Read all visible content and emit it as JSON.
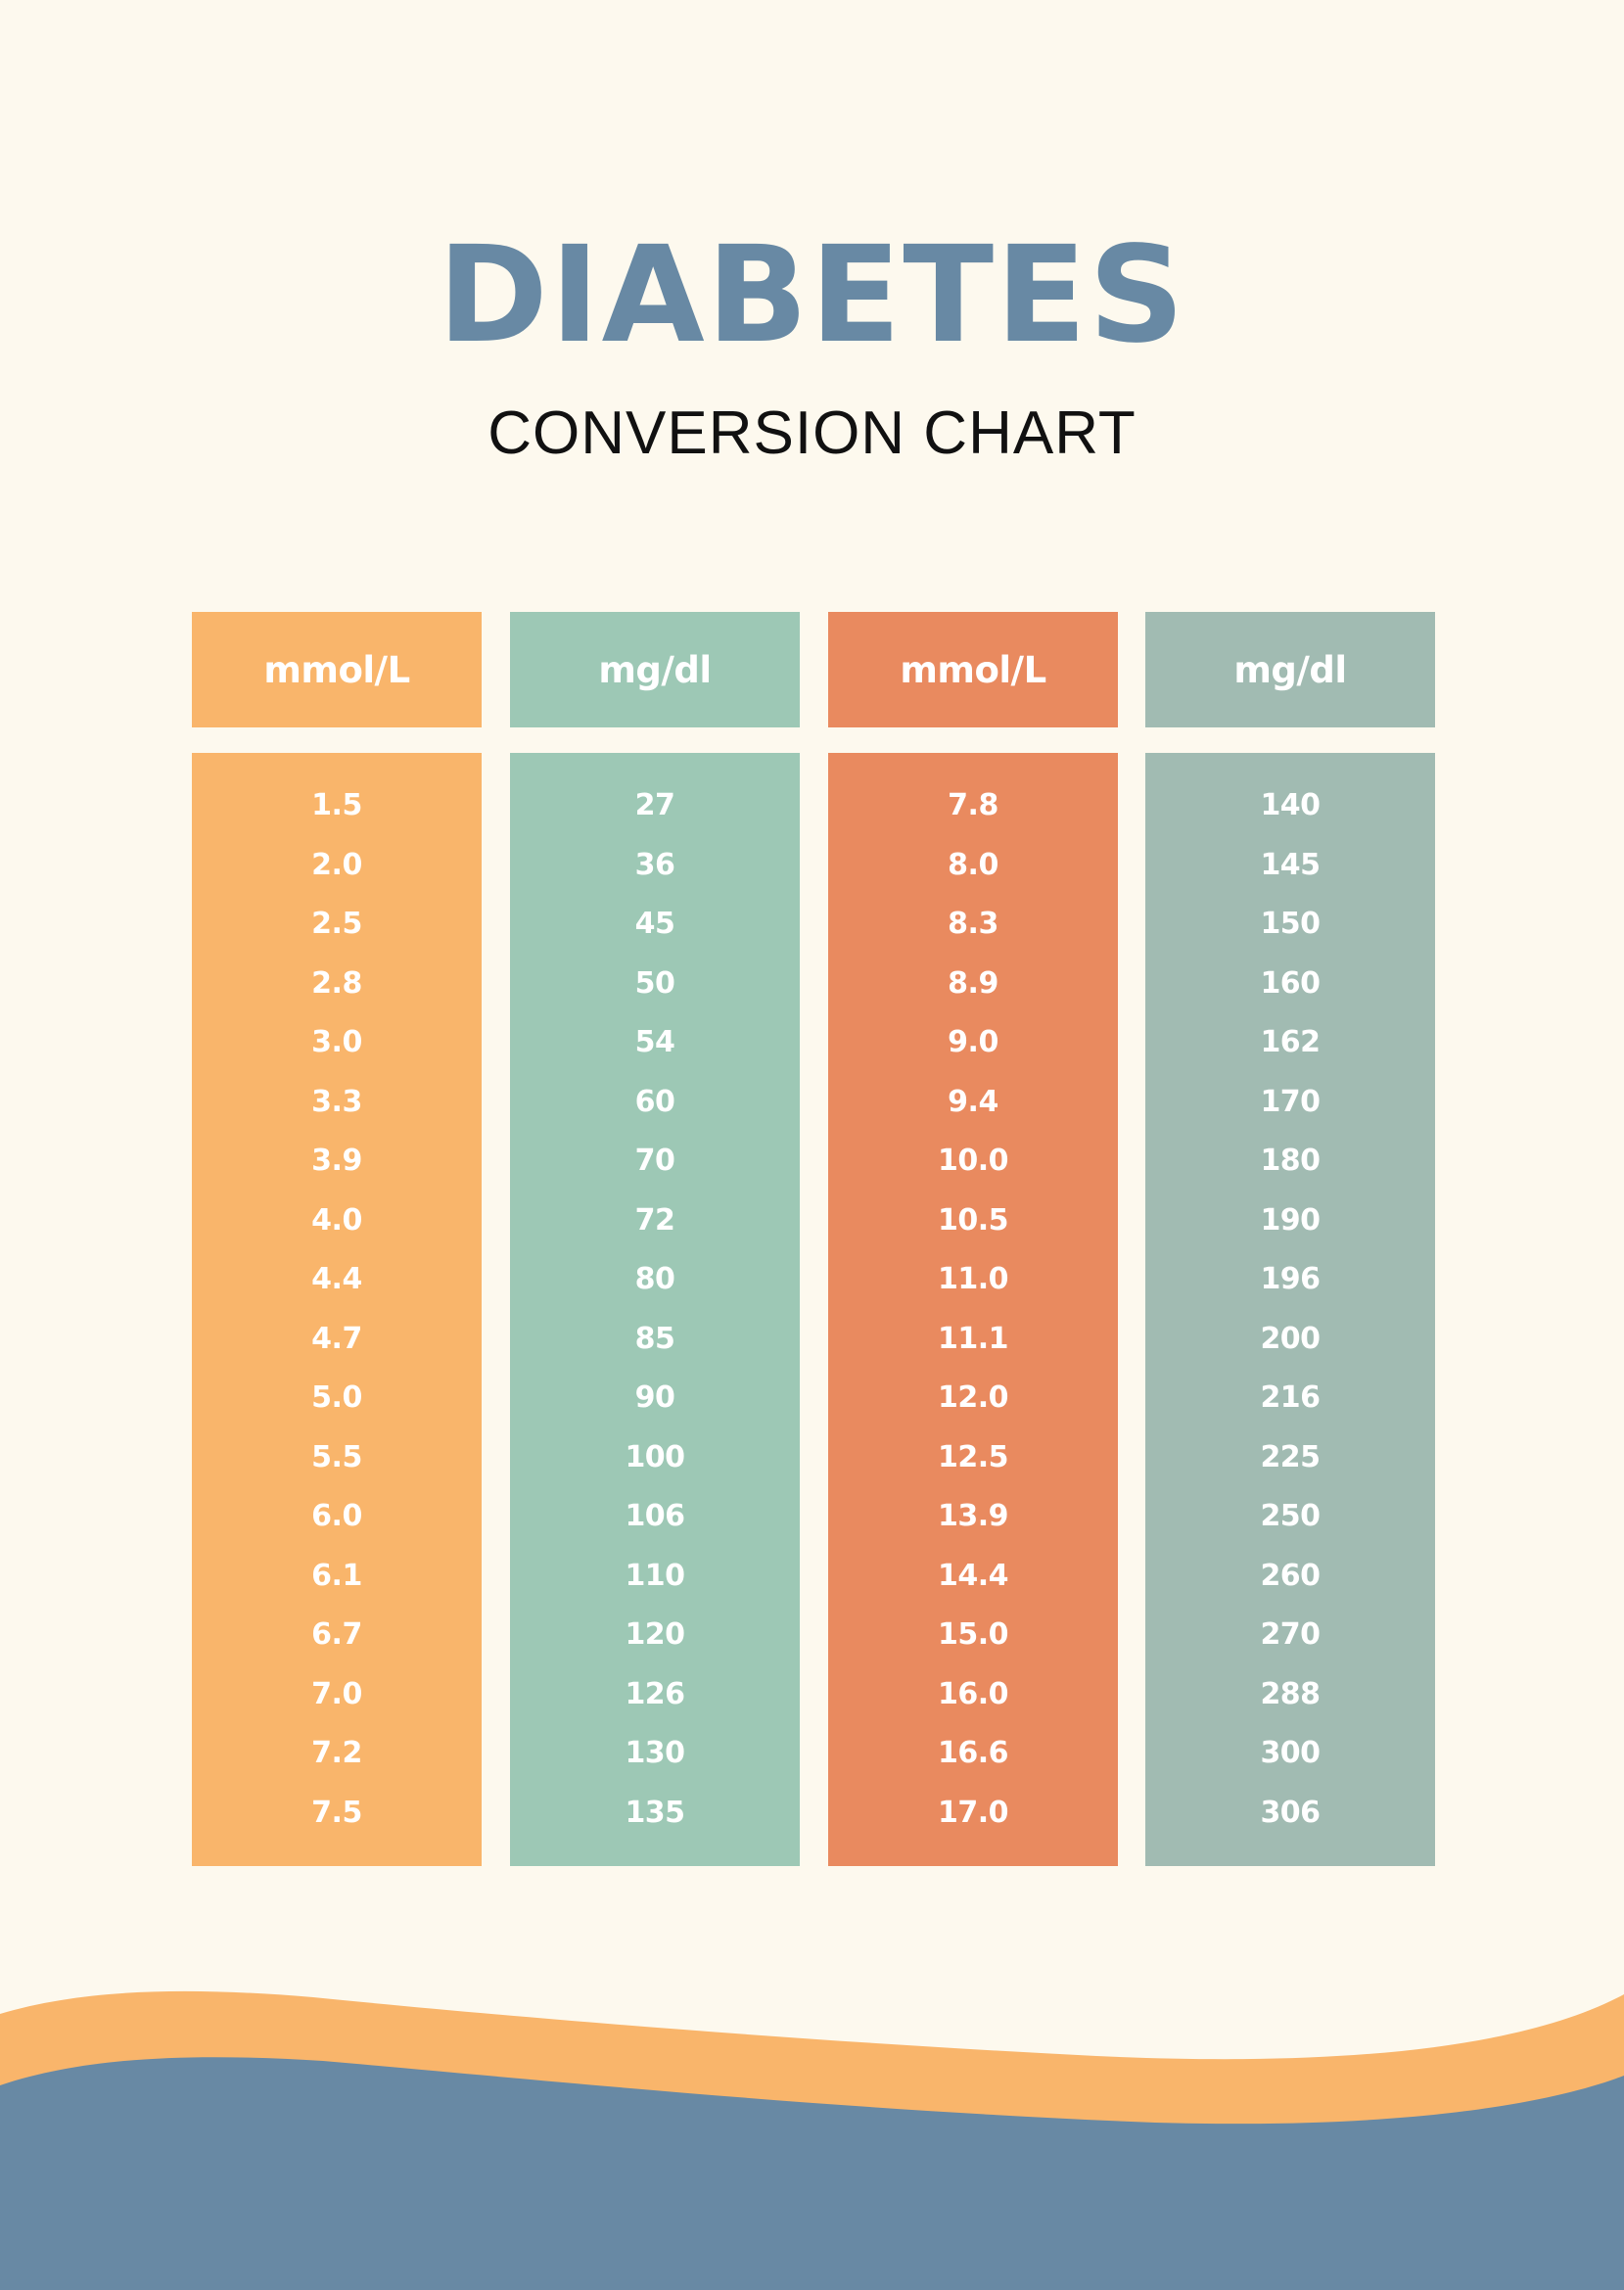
{
  "header": {
    "title": "DIABETES",
    "subtitle": "CONVERSION CHART"
  },
  "colors": {
    "background": "#fdf9ee",
    "title": "#6889a4",
    "subtitle": "#111111",
    "col1": "#f9b56b",
    "col2": "#9dc8b5",
    "col3": "#e98a5f",
    "col4": "#a1bbb2",
    "wave_orange": "#f9b56b",
    "wave_blue": "#6889a4"
  },
  "table": {
    "columns": [
      {
        "header": "mmol/L",
        "values": [
          "1.5",
          "2.0",
          "2.5",
          "2.8",
          "3.0",
          "3.3",
          "3.9",
          "4.0",
          "4.4",
          "4.7",
          "5.0",
          "5.5",
          "6.0",
          "6.1",
          "6.7",
          "7.0",
          "7.2",
          "7.5"
        ]
      },
      {
        "header": "mg/dl",
        "values": [
          "27",
          "36",
          "45",
          "50",
          "54",
          "60",
          "70",
          "72",
          "80",
          "85",
          "90",
          "100",
          "106",
          "110",
          "120",
          "126",
          "130",
          "135"
        ]
      },
      {
        "header": "mmol/L",
        "values": [
          "7.8",
          "8.0",
          "8.3",
          "8.9",
          "9.0",
          "9.4",
          "10.0",
          "10.5",
          "11.0",
          "11.1",
          "12.0",
          "12.5",
          "13.9",
          "14.4",
          "15.0",
          "16.0",
          "16.6",
          "17.0"
        ]
      },
      {
        "header": "mg/dl",
        "values": [
          "140",
          "145",
          "150",
          "160",
          "162",
          "170",
          "180",
          "190",
          "196",
          "200",
          "216",
          "225",
          "250",
          "260",
          "270",
          "288",
          "300",
          "306"
        ]
      }
    ]
  },
  "chart_data": {
    "type": "table",
    "title": "DIABETES CONVERSION CHART",
    "columns": [
      "mmol/L",
      "mg/dl",
      "mmol/L",
      "mg/dl"
    ],
    "rows": [
      [
        "1.5",
        "27",
        "7.8",
        "140"
      ],
      [
        "2.0",
        "36",
        "8.0",
        "145"
      ],
      [
        "2.5",
        "45",
        "8.3",
        "150"
      ],
      [
        "2.8",
        "50",
        "8.9",
        "160"
      ],
      [
        "3.0",
        "54",
        "9.0",
        "162"
      ],
      [
        "3.3",
        "60",
        "9.4",
        "170"
      ],
      [
        "3.9",
        "70",
        "10.0",
        "180"
      ],
      [
        "4.0",
        "72",
        "10.5",
        "190"
      ],
      [
        "4.4",
        "80",
        "11.0",
        "196"
      ],
      [
        "4.7",
        "85",
        "11.1",
        "200"
      ],
      [
        "5.0",
        "90",
        "12.0",
        "216"
      ],
      [
        "5.5",
        "100",
        "12.5",
        "225"
      ],
      [
        "6.0",
        "106",
        "13.9",
        "250"
      ],
      [
        "6.1",
        "110",
        "14.4",
        "260"
      ],
      [
        "6.7",
        "120",
        "15.0",
        "270"
      ],
      [
        "7.0",
        "126",
        "16.0",
        "288"
      ],
      [
        "7.2",
        "130",
        "16.6",
        "300"
      ],
      [
        "7.5",
        "135",
        "17.0",
        "306"
      ]
    ]
  }
}
